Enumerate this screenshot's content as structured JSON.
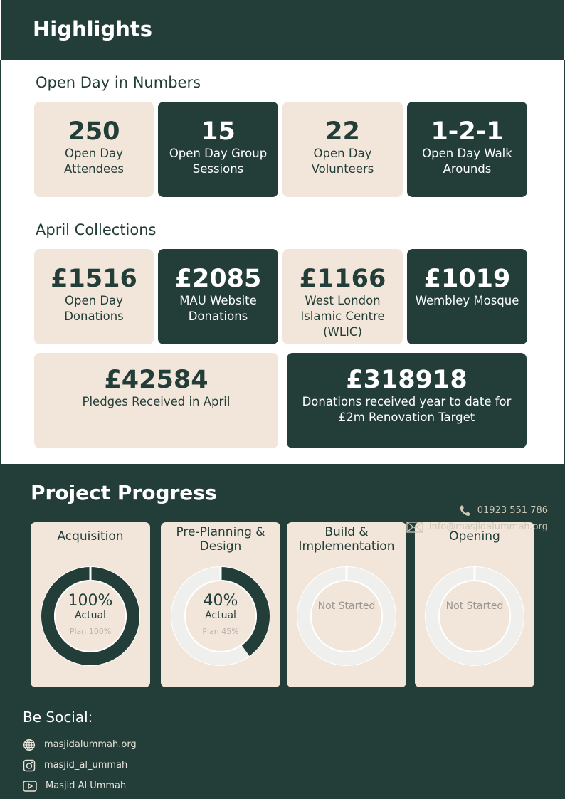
{
  "header": {
    "title": "Highlights"
  },
  "open_day": {
    "title": "Open Day in Numbers",
    "stats": [
      {
        "value": "250",
        "label": "Open Day Attendees",
        "theme": "cream"
      },
      {
        "value": "15",
        "label": "Open Day Group Sessions",
        "theme": "dark"
      },
      {
        "value": "22",
        "label": "Open Day Volunteers",
        "theme": "cream"
      },
      {
        "value": "1-2-1",
        "label": "Open Day Walk Arounds",
        "theme": "dark"
      }
    ]
  },
  "collections": {
    "title": "April Collections",
    "stats": [
      {
        "value": "£1516",
        "label": "Open Day Donations",
        "theme": "cream"
      },
      {
        "value": "£2085",
        "label": "MAU Website Donations",
        "theme": "dark"
      },
      {
        "value": "£1166",
        "label": "West London Islamic Centre (WLIC)",
        "theme": "cream"
      },
      {
        "value": "£1019",
        "label": "Wembley Mosque",
        "theme": "dark"
      }
    ],
    "wide": [
      {
        "value": "£42584",
        "label": "Pledges Received in April",
        "theme": "cream"
      },
      {
        "value": "£318918",
        "label": "Donations received year to date for £2m Renovation Target",
        "theme": "dark"
      }
    ]
  },
  "progress": {
    "title": "Project Progress",
    "stages": [
      {
        "title": "Acquisition",
        "actual": 100,
        "actual_text": "100%",
        "actual_label": "Actual",
        "plan_text": "Plan 100%"
      },
      {
        "title": "Pre-Planning & Design",
        "actual": 40,
        "actual_text": "40%",
        "actual_label": "Actual",
        "plan_text": "Plan 45%"
      },
      {
        "title": "Build & Implementation",
        "actual": 0,
        "status": "Not Started"
      },
      {
        "title": "Opening",
        "actual": 0,
        "status": "Not Started"
      }
    ]
  },
  "social": {
    "title": "Be Social:",
    "items": [
      {
        "icon": "globe-icon",
        "text": "masjidalummah.org"
      },
      {
        "icon": "instagram-icon",
        "text": "masjid_al_ummah"
      },
      {
        "icon": "youtube-icon",
        "text": "Masjid Al Ummah"
      }
    ]
  },
  "contact": {
    "phone": "01923 551 786",
    "email": "info@masjidalummah.org"
  },
  "colors": {
    "dark": "#233d38",
    "cream": "#f2e6da",
    "ring_empty": "#efefed"
  }
}
